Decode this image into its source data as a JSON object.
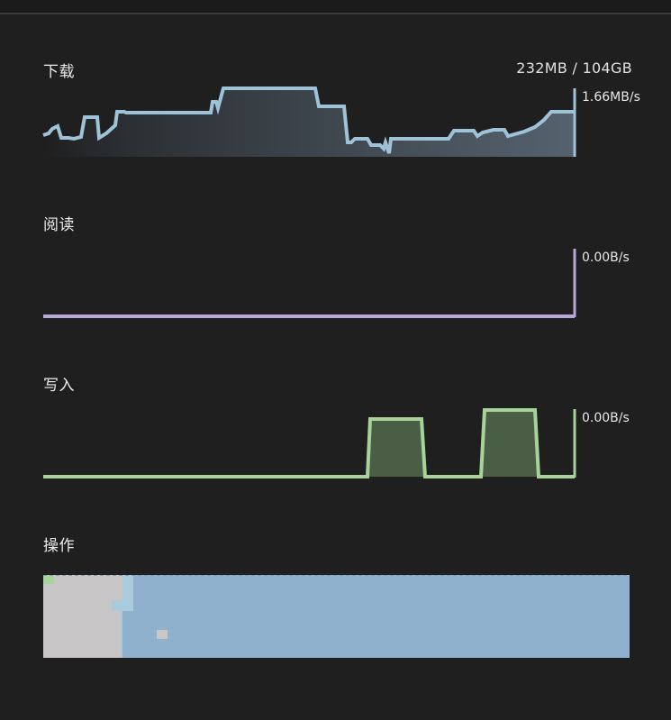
{
  "download": {
    "title": "下载",
    "total": "232MB / 104GB",
    "rate": "1.66MB/s",
    "color": "#9ec3d9"
  },
  "read": {
    "title": "阅读",
    "rate": "0.00B/s",
    "color": "#b7a6d8"
  },
  "write": {
    "title": "写入",
    "rate": "0.00B/s",
    "color": "#a7d39a"
  },
  "operations": {
    "title": "操作",
    "colors": {
      "grey": "#c8c6c6",
      "blue": "#8fb1cd",
      "light_blue": "#a9cbdc",
      "green": "#a6d49a"
    }
  }
}
